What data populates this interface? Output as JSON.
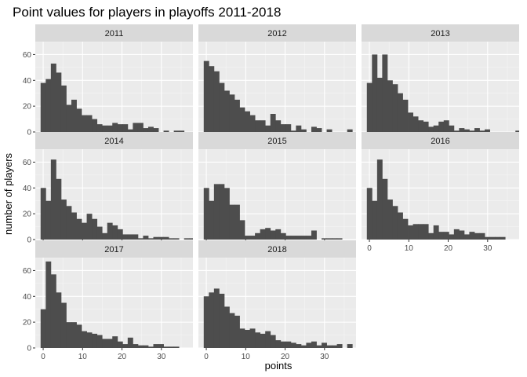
{
  "chart_data": {
    "type": "bar",
    "subtype": "faceted-histogram",
    "title": "Point values for players in playoffs 2011-2018",
    "xlabel": "points",
    "ylabel": "number of players",
    "bin_width": 1.3,
    "x_start": -0.65,
    "xlim": [
      -2,
      38
    ],
    "ylim": [
      0,
      70
    ],
    "x_ticks": [
      0,
      10,
      20,
      30
    ],
    "y_ticks": [
      0,
      20,
      40,
      60
    ],
    "colors": {
      "bar": "#4d4d4d",
      "panel_bg": "#ebebeb",
      "strip_bg": "#d9d9d9",
      "grid_major": "#ffffff",
      "grid_minor": "#f5f5f5"
    },
    "facets": [
      {
        "label": "2011",
        "counts": [
          38,
          41,
          53,
          46,
          36,
          21,
          25,
          18,
          13,
          13,
          10,
          6,
          5,
          5,
          7,
          6,
          6,
          2,
          7,
          7,
          3,
          4,
          3,
          0,
          1,
          0,
          1,
          1
        ]
      },
      {
        "label": "2012",
        "counts": [
          55,
          51,
          47,
          38,
          32,
          29,
          25,
          19,
          16,
          13,
          9,
          9,
          5,
          14,
          9,
          6,
          6,
          1,
          5,
          2,
          0,
          4,
          3,
          0,
          2,
          0,
          0,
          0,
          2
        ]
      },
      {
        "label": "2013",
        "counts": [
          38,
          60,
          42,
          60,
          40,
          37,
          30,
          25,
          15,
          12,
          9,
          8,
          4,
          5,
          8,
          9,
          5,
          1,
          3,
          2,
          1,
          3,
          1,
          2,
          0,
          0,
          0,
          0,
          0,
          1,
          0,
          0,
          0,
          0,
          0,
          0,
          1
        ]
      },
      {
        "label": "2014",
        "counts": [
          40,
          30,
          62,
          47,
          31,
          26,
          21,
          16,
          13,
          20,
          16,
          10,
          5,
          13,
          11,
          8,
          4,
          4,
          4,
          1,
          3,
          1,
          2,
          2,
          2,
          1,
          1,
          0,
          1,
          1,
          0,
          1,
          1
        ]
      },
      {
        "label": "2015",
        "counts": [
          40,
          30,
          43,
          43,
          40,
          27,
          27,
          15,
          3,
          3,
          5,
          8,
          9,
          7,
          8,
          5,
          3,
          3,
          3,
          3,
          3,
          7,
          0,
          1,
          1,
          1,
          1
        ]
      },
      {
        "label": "2016",
        "counts": [
          40,
          30,
          62,
          47,
          31,
          26,
          21,
          16,
          11,
          12,
          12,
          12,
          5,
          11,
          6,
          6,
          4,
          8,
          7,
          4,
          6,
          5,
          5,
          2,
          2,
          2,
          2,
          0,
          0,
          0,
          0,
          0,
          1,
          0,
          0,
          0,
          1
        ]
      },
      {
        "label": "2017",
        "counts": [
          30,
          67,
          57,
          43,
          35,
          20,
          20,
          18,
          13,
          12,
          11,
          10,
          7,
          7,
          9,
          5,
          3,
          8,
          3,
          2,
          2,
          1,
          3,
          3,
          1,
          1,
          1,
          0,
          0,
          0,
          0,
          2,
          0,
          0,
          0,
          1
        ]
      },
      {
        "label": "2018",
        "counts": [
          40,
          43,
          46,
          42,
          32,
          27,
          25,
          15,
          14,
          15,
          12,
          11,
          13,
          10,
          6,
          5,
          5,
          4,
          3,
          2,
          4,
          5,
          2,
          4,
          2,
          2,
          3,
          0,
          3,
          0,
          0,
          0,
          0,
          0,
          0,
          0,
          2
        ]
      }
    ]
  }
}
